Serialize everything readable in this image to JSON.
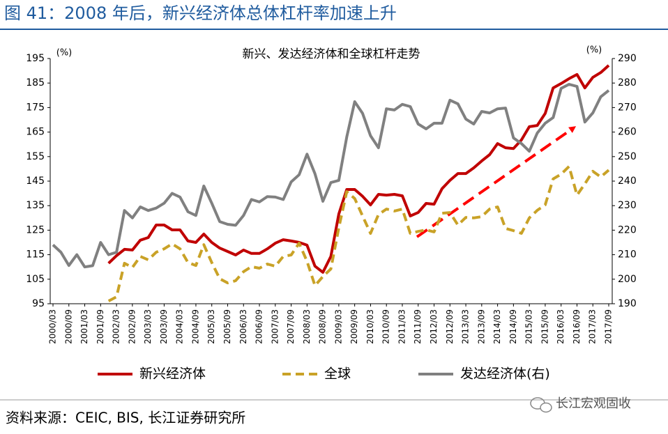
{
  "header": {
    "title": "图 41：2008 年后，新兴经济体总体杠杆率加速上升"
  },
  "chart_data": {
    "type": "line",
    "title": "新兴、发达经济体和全球杠杆走势",
    "ylabel": "(%)",
    "y2label": "(%)",
    "categories": [
      "2000/03",
      null,
      "2000/09",
      null,
      "2001/03",
      null,
      "2001/09",
      null,
      "2002/03",
      null,
      "2002/09",
      null,
      "2003/03",
      null,
      "2003/09",
      null,
      "2004/03",
      null,
      "2004/09",
      null,
      "2005/03",
      null,
      "2005/09",
      null,
      "2006/03",
      null,
      "2006/09",
      null,
      "2007/03",
      null,
      "2007/09",
      null,
      "2008/03",
      null,
      "2008/09",
      null,
      "2009/03",
      null,
      "2009/09",
      null,
      "2010/03",
      null,
      "2010/09",
      null,
      "2011/03",
      null,
      "2011/09",
      null,
      "2012/03",
      null,
      "2012/09",
      null,
      "2013/03",
      null,
      "2013/09",
      null,
      "2014/03",
      null,
      "2014/09",
      null,
      "2015/03",
      null,
      "2015/09",
      null,
      "2016/03",
      null,
      "2016/09",
      null,
      "2017/03",
      null,
      "2017/09"
    ],
    "ylim": [
      95,
      195
    ],
    "yticks": [
      95,
      105,
      115,
      125,
      135,
      145,
      155,
      165,
      175,
      185,
      195
    ],
    "y2lim": [
      190,
      290
    ],
    "y2ticks": [
      190,
      200,
      210,
      220,
      230,
      240,
      250,
      260,
      270,
      280,
      290
    ],
    "grid": false,
    "legend": "bottom",
    "series": [
      {
        "name": "新兴经济体",
        "color": "#c00000",
        "line_style": "solid",
        "axis": "y",
        "values": [
          null,
          null,
          null,
          null,
          null,
          null,
          null,
          111.5,
          114.6,
          117.2,
          116.9,
          120.9,
          122,
          127.1,
          127.1,
          125.1,
          125.1,
          120.6,
          120,
          123.4,
          120,
          117.7,
          116.3,
          114.9,
          116.9,
          115.5,
          115.5,
          117.4,
          119.7,
          121.1,
          120.6,
          120,
          118.9,
          110.3,
          107.8,
          114.3,
          131.6,
          141.6,
          141.6,
          138.8,
          135.3,
          139.6,
          139.3,
          139.6,
          139,
          130.8,
          132.2,
          135.9,
          135.6,
          141.9,
          145.3,
          148.1,
          148.1,
          150.4,
          153.2,
          155.8,
          160.3,
          158.6,
          158.3,
          161.8,
          167.2,
          167.7,
          172.6,
          183,
          184.8,
          186.8,
          188.5,
          183,
          187.3,
          189.3,
          192.2
        ]
      },
      {
        "name": "全球",
        "color": "#c9a227",
        "line_style": "dashed",
        "axis": "y",
        "values": [
          null,
          null,
          null,
          null,
          null,
          null,
          null,
          96.1,
          97.8,
          111.5,
          109.8,
          114.3,
          112.9,
          116,
          117.4,
          119.4,
          117.4,
          111.8,
          110.6,
          119.1,
          111.8,
          105.2,
          103.5,
          104.4,
          108.1,
          110.1,
          109.5,
          111.2,
          110.3,
          114.3,
          114.9,
          119.7,
          112.3,
          102.4,
          106.1,
          109.2,
          126,
          140.7,
          137.9,
          130.8,
          123.7,
          131.4,
          133.6,
          132.8,
          133.6,
          123.7,
          124.5,
          125.1,
          124.3,
          131.9,
          132.2,
          127.1,
          130.2,
          130,
          130.5,
          133.6,
          134.5,
          125.7,
          124.8,
          123.7,
          130,
          133.1,
          135.3,
          145.9,
          147.8,
          151,
          139.3,
          143.9,
          149,
          146.7,
          149.5
        ]
      },
      {
        "name": "发达经济体(右)",
        "color": "#808080",
        "line_style": "solid",
        "axis": "y2",
        "values": [
          214,
          211,
          205.6,
          210,
          205,
          205.5,
          215,
          210,
          211,
          228,
          225,
          229.5,
          228,
          229,
          231,
          235,
          233.5,
          227.5,
          226,
          238,
          231,
          223.5,
          222.4,
          222,
          226,
          232.5,
          231.5,
          233.7,
          233.5,
          232.5,
          239.7,
          242.6,
          251,
          243,
          231.8,
          239.4,
          240.3,
          258,
          272.4,
          267.6,
          258.5,
          253.6,
          269.5,
          269,
          271.3,
          270.4,
          263.3,
          261.3,
          263.6,
          263.6,
          273,
          271.5,
          265.3,
          263.3,
          268.4,
          267.8,
          269.5,
          269.8,
          257.6,
          255.3,
          252.2,
          259.6,
          263.6,
          265.9,
          277.8,
          279.5,
          278.6,
          264.1,
          267.8,
          274.4,
          277
        ]
      }
    ]
  },
  "source": "资料来源：CEIC, BIS, 长江证券研究所",
  "watermark": "长江宏观固收"
}
